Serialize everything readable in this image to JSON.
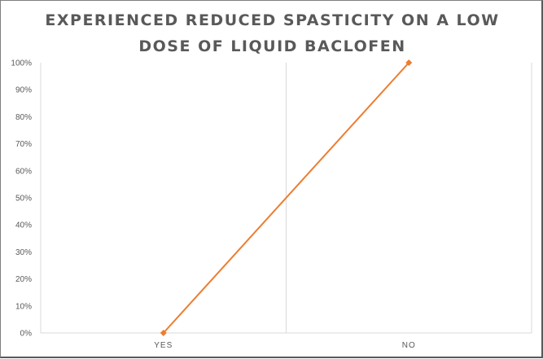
{
  "chart_data": {
    "type": "line",
    "title_lines": [
      "EXPERIENCED REDUCED SPASTICITY ON A LOW",
      "DOSE OF LIQUID BACLOFEN"
    ],
    "categories": [
      "YES",
      "NO"
    ],
    "series": [
      {
        "values": [
          0,
          1
        ],
        "color": "#ED7D31",
        "marker": "diamond"
      }
    ],
    "ylim": [
      0,
      1
    ],
    "yticks": [
      "0%",
      "10%",
      "20%",
      "30%",
      "40%",
      "50%",
      "60%",
      "70%",
      "80%",
      "90%",
      "100%"
    ],
    "xlabel": "",
    "ylabel": "",
    "grid": "vertical category separators only",
    "legend": "none"
  }
}
